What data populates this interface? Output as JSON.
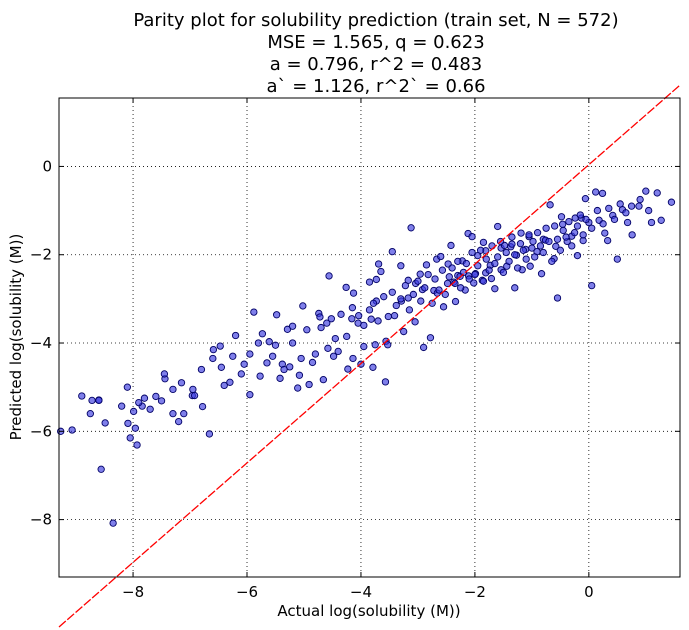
{
  "chart_data": {
    "type": "scatter",
    "title_lines": [
      "Parity plot for solubility prediction (train set, N = 572)",
      "MSE = 1.565, q = 0.623",
      "a = 0.796, r^2 = 0.483",
      "a` = 1.126, r^2` = 0.66"
    ],
    "xlabel": "Actual log(solubility (M))",
    "ylabel": "Predicted log(solubility (M))",
    "xlim": [
      -9.3,
      1.6
    ],
    "ylim": [
      -9.3,
      1.55
    ],
    "xticks": [
      -8,
      -6,
      -4,
      -2,
      0
    ],
    "yticks": [
      -8,
      -6,
      -4,
      -2,
      0
    ],
    "xtick_labels": [
      "−8",
      "−6",
      "−4",
      "−2",
      "0"
    ],
    "ytick_labels": [
      "−8",
      "−6",
      "−4",
      "−2",
      "0"
    ],
    "grid": true,
    "fit_line": {
      "slope": 1.126,
      "intercept": 0.04,
      "color": "#ff0000"
    },
    "marker_color": "#3a3adf",
    "marker_edge": "#000066",
    "points_x": [
      -9.27,
      -9.07,
      -8.9,
      -8.75,
      -8.72,
      -8.6,
      -8.56,
      -8.49,
      -8.35,
      -8.2,
      -8.09,
      -8.05,
      -7.99,
      -7.96,
      -7.93,
      -7.84,
      -7.8,
      -7.6,
      -7.5,
      -7.44,
      -7.3,
      -7.2,
      -7.11,
      -6.96,
      -6.92,
      -6.78,
      -6.66,
      -6.59,
      -6.47,
      -6.4,
      -6.3,
      -6.2,
      -6.05,
      -5.95,
      -5.88,
      -5.77,
      -5.73,
      -5.61,
      -5.55,
      -5.48,
      -5.42,
      -5.38,
      -5.29,
      -5.25,
      -5.2,
      -5.11,
      -5.08,
      -5.02,
      -4.91,
      -4.85,
      -4.74,
      -4.72,
      -4.66,
      -4.58,
      -4.56,
      -4.52,
      -4.48,
      -4.4,
      -4.26,
      -4.23,
      -4.16,
      -4.14,
      -4.13,
      -4.04,
      -4.0,
      -3.95,
      -3.85,
      -3.82,
      -3.79,
      -3.75,
      -3.73,
      -3.73,
      -3.69,
      -3.65,
      -3.57,
      -3.56,
      -3.53,
      -3.45,
      -3.41,
      -3.3,
      -3.29,
      -3.25,
      -3.17,
      -3.17,
      -3.12,
      -3.05,
      -3.04,
      -2.96,
      -2.92,
      -2.9,
      -2.85,
      -2.78,
      -2.72,
      -2.67,
      -2.66,
      -2.6,
      -2.55,
      -2.48,
      -2.47,
      -2.42,
      -2.37,
      -2.34,
      -2.3,
      -2.26,
      -2.22,
      -2.17,
      -2.12,
      -2.11,
      -2.05,
      -2.02,
      -1.99,
      -1.95,
      -1.87,
      -1.85,
      -1.81,
      -1.81,
      -1.73,
      -1.71,
      -1.65,
      -1.6,
      -1.54,
      -1.54,
      -1.48,
      -1.44,
      -1.37,
      -1.35,
      -1.3,
      -1.27,
      -1.19,
      -1.17,
      -1.11,
      -1.05,
      -1.03,
      -0.98,
      -0.91,
      -0.83,
      -0.8,
      -0.76,
      -0.68,
      -0.61,
      -0.58,
      -0.55,
      -0.48,
      -0.46,
      -0.38,
      -0.3,
      -0.24,
      -0.2,
      -0.13,
      -0.1,
      -0.06,
      0.0,
      0.05,
      0.12,
      0.18,
      0.24,
      0.28,
      0.33,
      0.42,
      0.5,
      0.59,
      0.68,
      0.76,
      0.88,
      1.0,
      1.1,
      1.27,
      1.45
    ],
    "points_y": [
      -6.0,
      -5.97,
      -5.2,
      -5.6,
      -5.3,
      -5.29,
      -6.86,
      -5.81,
      -8.08,
      -5.43,
      -5.82,
      -6.15,
      -5.55,
      -5.93,
      -6.31,
      -5.43,
      -5.25,
      -5.21,
      -5.31,
      -4.81,
      -5.05,
      -5.78,
      -5.6,
      -5.19,
      -5.19,
      -5.44,
      -6.06,
      -4.15,
      -4.07,
      -4.96,
      -4.89,
      -3.83,
      -4.48,
      -5.17,
      -3.3,
      -4.75,
      -3.79,
      -3.97,
      -4.3,
      -3.36,
      -4.8,
      -4.48,
      -3.69,
      -4.54,
      -3.62,
      -5.02,
      -4.73,
      -3.16,
      -4.94,
      -4.44,
      -3.33,
      -3.41,
      -4.83,
      -4.12,
      -2.48,
      -3.45,
      -4.3,
      -4.19,
      -2.74,
      -4.59,
      -3.45,
      -4.35,
      -2.87,
      -3.38,
      -4.48,
      -4.08,
      -2.62,
      -3.46,
      -4.55,
      -4.04,
      -3.05,
      -2.56,
      -2.21,
      -2.38,
      -4.88,
      -3.96,
      -4.04,
      -1.93,
      -3.38,
      -2.25,
      -3.05,
      -3.74,
      -2.98,
      -2.58,
      -1.39,
      -3.52,
      -2.65,
      -2.44,
      -2.79,
      -4.1,
      -2.23,
      -3.88,
      -2.81,
      -2.1,
      -2.87,
      -2.04,
      -3.18,
      -2.65,
      -2.21,
      -1.79,
      -2.62,
      -3.06,
      -2.47,
      -2.49,
      -2.14,
      -2.8,
      -1.52,
      -2.48,
      -1.59,
      -2.64,
      -2.43,
      -2.02,
      -2.58,
      -1.72,
      -2.41,
      -1.91,
      -2.24,
      -2.54,
      -2.77,
      -1.36,
      -2.34,
      -1.85,
      -1.79,
      -2.26,
      -1.82,
      -1.76,
      -2.75,
      -2.01,
      -1.51,
      -2.34,
      -1.88,
      -1.59,
      -2.26,
      -1.7,
      -1.93,
      -2.43,
      -1.65,
      -1.67,
      -0.87,
      -2.09,
      -1.81,
      -2.98,
      -1.14,
      -1.31,
      -1.7,
      -1.58,
      -1.17,
      -2.02,
      -1.17,
      -1.68,
      -0.73,
      -1.27,
      -2.7,
      -0.58,
      -1.22,
      -0.61,
      -1.51,
      -1.68,
      -1.11,
      -2.1,
      -0.98,
      -1.27,
      -1.55,
      -0.9,
      -0.56,
      -1.27,
      -1.22,
      -0.81,
      -1.32,
      -1.6
    ],
    "points_x_b": [
      -8.6,
      -8.1,
      -7.9,
      -7.7,
      -7.45,
      -7.3,
      -7.15,
      -6.95,
      -6.8,
      -6.6,
      -6.45,
      -6.25,
      -6.1,
      -5.95,
      -5.8,
      -5.65,
      -5.5,
      -5.35,
      -5.2,
      -5.05,
      -4.95,
      -4.8,
      -4.7,
      -4.6,
      -4.45,
      -4.35,
      -4.25,
      -4.15,
      -4.05,
      -3.95,
      -3.85,
      -3.78,
      -3.7,
      -3.6,
      -3.52,
      -3.45,
      -3.38,
      -3.3,
      -3.22,
      -3.15,
      -3.08,
      -3.0,
      -2.95,
      -2.88,
      -2.82,
      -2.75,
      -2.7,
      -2.63,
      -2.57,
      -2.52,
      -2.45,
      -2.4,
      -2.35,
      -2.3,
      -2.25,
      -2.2,
      -2.15,
      -2.1,
      -2.05,
      -2.0,
      -1.95,
      -1.9,
      -1.85,
      -1.8,
      -1.75,
      -1.7,
      -1.65,
      -1.6,
      -1.55,
      -1.5,
      -1.45,
      -1.4,
      -1.35,
      -1.3,
      -1.25,
      -1.2,
      -1.15,
      -1.1,
      -1.05,
      -1.0,
      -0.95,
      -0.9,
      -0.85,
      -0.8,
      -0.75,
      -0.7,
      -0.65,
      -0.6,
      -0.55,
      -0.5,
      -0.45,
      -0.4,
      -0.35,
      -0.3,
      -0.25,
      -0.2,
      -0.15,
      -0.1,
      -0.05,
      0.05,
      0.15,
      0.25,
      0.35,
      0.45,
      0.55,
      0.65,
      0.75,
      0.9,
      1.05,
      1.2
    ],
    "points_y_b": [
      -5.3,
      -5.0,
      -5.35,
      -5.5,
      -4.7,
      -5.6,
      -4.9,
      -5.05,
      -4.6,
      -4.35,
      -4.55,
      -4.3,
      -4.7,
      -4.25,
      -4.0,
      -4.45,
      -4.05,
      -4.6,
      -4.0,
      -4.35,
      -3.7,
      -4.25,
      -3.65,
      -3.55,
      -3.9,
      -3.35,
      -3.85,
      -3.2,
      -3.55,
      -3.6,
      -3.25,
      -3.1,
      -3.5,
      -2.95,
      -3.4,
      -2.85,
      -3.15,
      -3.0,
      -2.7,
      -3.25,
      -2.9,
      -2.6,
      -3.05,
      -2.75,
      -2.45,
      -3.1,
      -2.55,
      -2.8,
      -2.35,
      -2.9,
      -2.5,
      -2.3,
      -2.65,
      -2.15,
      -2.75,
      -2.4,
      -2.2,
      -2.55,
      -1.95,
      -2.45,
      -2.25,
      -1.9,
      -2.6,
      -2.1,
      -2.35,
      -1.8,
      -2.2,
      -2.05,
      -1.7,
      -2.4,
      -1.95,
      -2.15,
      -1.6,
      -2.0,
      -2.3,
      -1.75,
      -1.9,
      -2.1,
      -1.55,
      -1.85,
      -2.05,
      -1.5,
      -1.8,
      -1.95,
      -1.4,
      -1.7,
      -2.15,
      -1.35,
      -1.65,
      -1.9,
      -1.45,
      -1.6,
      -1.25,
      -1.8,
      -1.5,
      -1.35,
      -1.1,
      -1.55,
      -1.2,
      -1.4,
      -1.0,
      -1.3,
      -0.95,
      -1.2,
      -0.85,
      -1.05,
      -0.9,
      -0.75,
      -1.0,
      -0.6
    ]
  }
}
